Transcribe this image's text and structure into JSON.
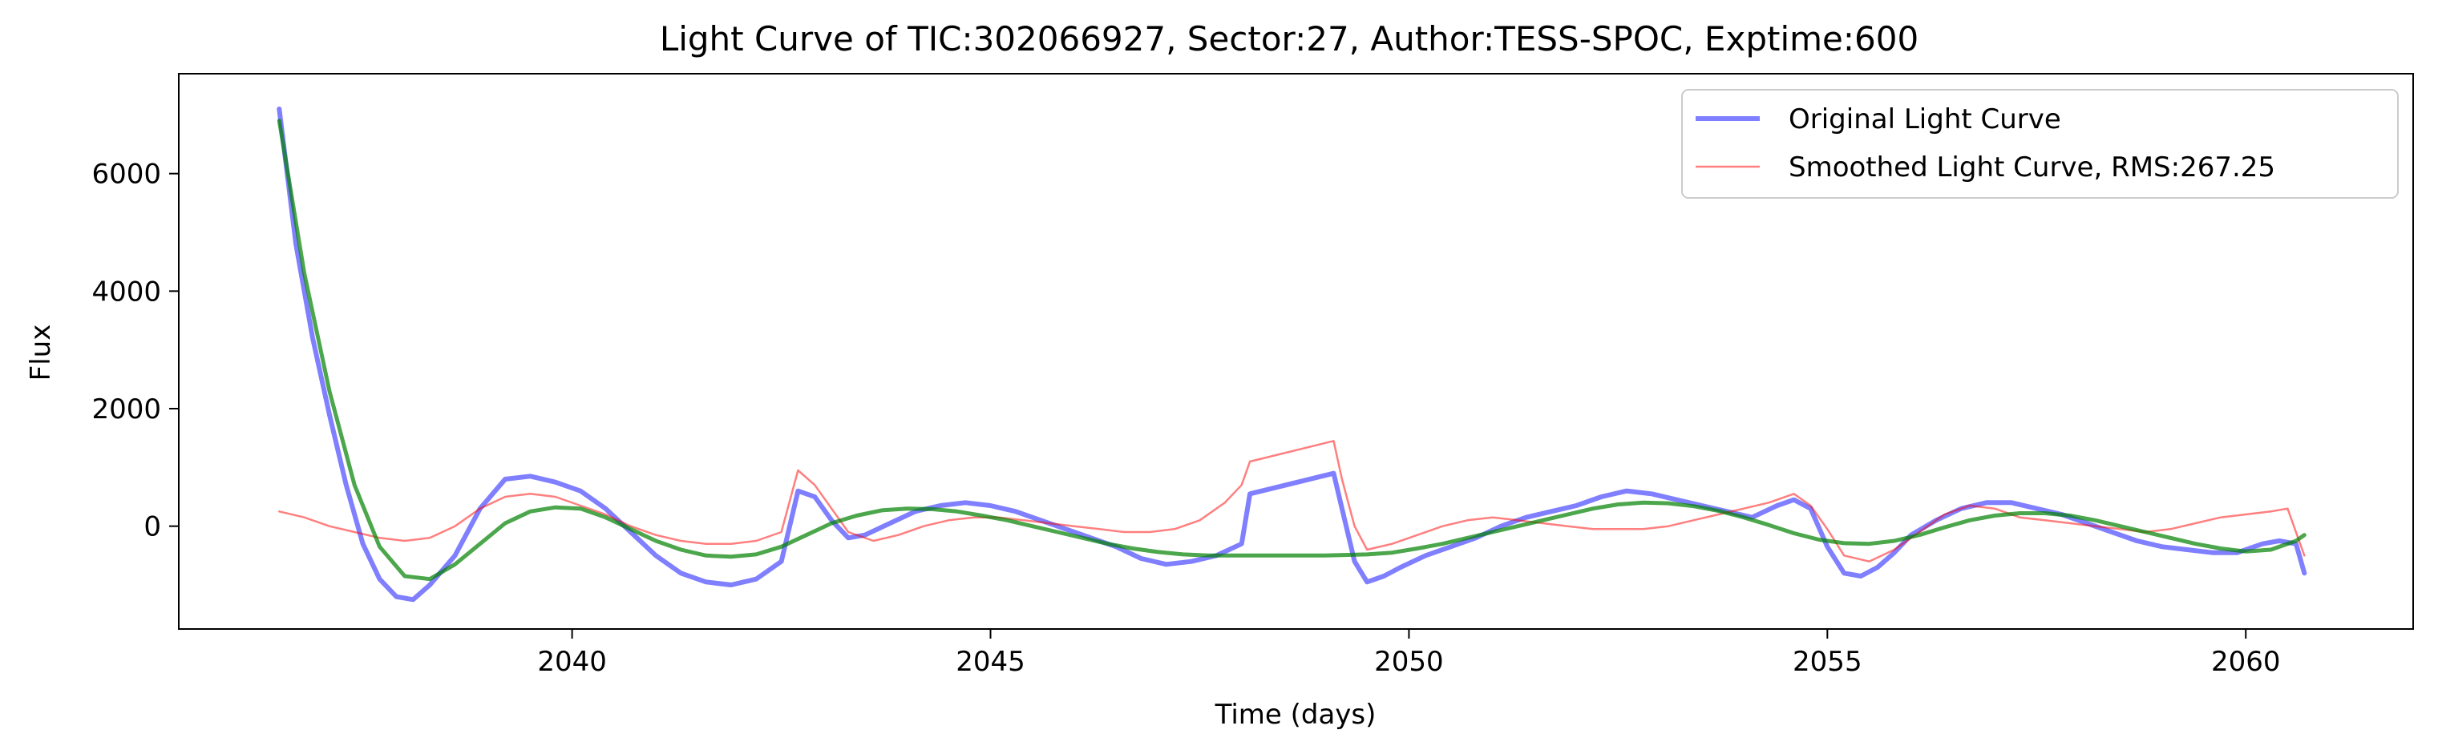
{
  "chart_data": {
    "type": "line",
    "title": "Light Curve of TIC:302066927, Sector:27, Author:TESS-SPOC, Exptime:600",
    "xlabel": "Time (days)",
    "ylabel": "Flux",
    "xlim": [
      2035.3,
      2062.0
    ],
    "ylim": [
      -1750,
      7700
    ],
    "xticks": [
      2040,
      2045,
      2050,
      2055,
      2060
    ],
    "yticks": [
      0,
      2000,
      4000,
      6000
    ],
    "xtick_labels": [
      "2040",
      "2045",
      "2050",
      "2055",
      "2060"
    ],
    "ytick_labels": [
      "0",
      "2000",
      "4000",
      "6000"
    ],
    "grid": false,
    "legend_position": "top-right",
    "series": [
      {
        "name": "Original Light Curve",
        "color": "#0000ff",
        "x": [
          2036.5,
          2036.7,
          2036.9,
          2037.1,
          2037.3,
          2037.5,
          2037.7,
          2037.9,
          2038.1,
          2038.3,
          2038.6,
          2038.9,
          2039.2,
          2039.5,
          2039.8,
          2040.1,
          2040.4,
          2040.7,
          2041.0,
          2041.3,
          2041.6,
          2041.9,
          2042.2,
          2042.5,
          2042.7,
          2042.9,
          2043.1,
          2043.3,
          2043.5,
          2043.8,
          2044.1,
          2044.4,
          2044.7,
          2045.0,
          2045.3,
          2045.6,
          2045.9,
          2046.2,
          2046.5,
          2046.8,
          2047.1,
          2047.4,
          2047.7,
          2048.0,
          2048.1,
          2049.1,
          2049.2,
          2049.35,
          2049.5,
          2049.7,
          2049.9,
          2050.2,
          2050.5,
          2050.8,
          2051.1,
          2051.4,
          2051.7,
          2052.0,
          2052.3,
          2052.6,
          2052.9,
          2053.2,
          2053.5,
          2053.8,
          2054.1,
          2054.4,
          2054.6,
          2054.8,
          2055.0,
          2055.2,
          2055.4,
          2055.6,
          2055.8,
          2056.0,
          2056.3,
          2056.6,
          2056.9,
          2057.2,
          2057.5,
          2057.8,
          2058.1,
          2058.4,
          2058.7,
          2059.0,
          2059.3,
          2059.6,
          2059.9,
          2060.2,
          2060.4,
          2060.6,
          2060.7
        ],
        "values": [
          7100,
          4800,
          3200,
          1900,
          700,
          -300,
          -900,
          -1200,
          -1250,
          -1000,
          -500,
          300,
          800,
          850,
          750,
          600,
          300,
          -100,
          -500,
          -800,
          -950,
          -1000,
          -900,
          -600,
          600,
          500,
          100,
          -200,
          -150,
          50,
          250,
          350,
          400,
          350,
          250,
          100,
          -50,
          -200,
          -350,
          -550,
          -650,
          -600,
          -500,
          -300,
          550,
          900,
          300,
          -600,
          -950,
          -850,
          -700,
          -500,
          -350,
          -200,
          0,
          150,
          250,
          350,
          500,
          600,
          550,
          450,
          350,
          250,
          150,
          350,
          450,
          300,
          -350,
          -800,
          -850,
          -700,
          -450,
          -150,
          100,
          300,
          400,
          400,
          300,
          200,
          50,
          -100,
          -250,
          -350,
          -400,
          -450,
          -450,
          -300,
          -250,
          -300,
          -800
        ]
      },
      {
        "name": "Smoothed Light Curve, RMS:267.25",
        "color": "#ff0000",
        "x": [
          2036.5,
          2036.8,
          2037.1,
          2037.4,
          2037.7,
          2038.0,
          2038.3,
          2038.6,
          2038.9,
          2039.2,
          2039.5,
          2039.8,
          2040.1,
          2040.4,
          2040.7,
          2041.0,
          2041.3,
          2041.6,
          2041.9,
          2042.2,
          2042.5,
          2042.7,
          2042.9,
          2043.1,
          2043.3,
          2043.6,
          2043.9,
          2044.2,
          2044.5,
          2044.8,
          2045.1,
          2045.4,
          2045.7,
          2046.0,
          2046.3,
          2046.6,
          2046.9,
          2047.2,
          2047.5,
          2047.8,
          2048.0,
          2048.1,
          2049.1,
          2049.2,
          2049.35,
          2049.5,
          2049.8,
          2050.1,
          2050.4,
          2050.7,
          2051.0,
          2051.3,
          2051.6,
          2051.9,
          2052.2,
          2052.5,
          2052.8,
          2053.1,
          2053.4,
          2053.7,
          2054.0,
          2054.3,
          2054.6,
          2054.8,
          2055.0,
          2055.2,
          2055.5,
          2055.8,
          2056.1,
          2056.4,
          2056.7,
          2057.0,
          2057.3,
          2057.6,
          2057.9,
          2058.2,
          2058.5,
          2058.8,
          2059.1,
          2059.4,
          2059.7,
          2060.0,
          2060.3,
          2060.5,
          2060.7
        ],
        "values": [
          250,
          150,
          0,
          -100,
          -200,
          -250,
          -200,
          0,
          300,
          500,
          550,
          500,
          350,
          200,
          0,
          -150,
          -250,
          -300,
          -300,
          -250,
          -100,
          950,
          700,
          300,
          -100,
          -250,
          -150,
          0,
          100,
          150,
          150,
          100,
          50,
          0,
          -50,
          -100,
          -100,
          -50,
          100,
          400,
          700,
          1100,
          1450,
          800,
          0,
          -400,
          -300,
          -150,
          0,
          100,
          150,
          100,
          50,
          0,
          -50,
          -50,
          -50,
          0,
          100,
          200,
          300,
          400,
          550,
          350,
          -50,
          -500,
          -600,
          -400,
          -100,
          200,
          350,
          300,
          150,
          100,
          50,
          0,
          -50,
          -100,
          -50,
          50,
          150,
          200,
          250,
          300,
          -500
        ]
      },
      {
        "name": "",
        "color": "#008000",
        "x": [
          2036.5,
          2036.8,
          2037.1,
          2037.4,
          2037.7,
          2038.0,
          2038.3,
          2038.6,
          2038.9,
          2039.2,
          2039.5,
          2039.8,
          2040.1,
          2040.4,
          2040.7,
          2041.0,
          2041.3,
          2041.6,
          2041.9,
          2042.2,
          2042.5,
          2042.8,
          2043.1,
          2043.4,
          2043.7,
          2044.0,
          2044.3,
          2044.6,
          2044.9,
          2045.2,
          2045.5,
          2045.8,
          2046.1,
          2046.4,
          2046.7,
          2047.0,
          2047.3,
          2047.6,
          2047.9,
          2048.5,
          2049.0,
          2049.5,
          2049.8,
          2050.1,
          2050.4,
          2050.7,
          2051.0,
          2051.3,
          2051.6,
          2051.9,
          2052.2,
          2052.5,
          2052.8,
          2053.1,
          2053.4,
          2053.7,
          2054.0,
          2054.3,
          2054.6,
          2054.9,
          2055.2,
          2055.5,
          2055.8,
          2056.1,
          2056.4,
          2056.7,
          2057.0,
          2057.3,
          2057.6,
          2057.9,
          2058.2,
          2058.5,
          2058.8,
          2059.1,
          2059.4,
          2059.7,
          2060.0,
          2060.3,
          2060.6,
          2060.7
        ],
        "values": [
          6900,
          4300,
          2300,
          700,
          -350,
          -850,
          -900,
          -650,
          -300,
          50,
          250,
          320,
          300,
          150,
          -50,
          -250,
          -400,
          -500,
          -520,
          -480,
          -350,
          -150,
          50,
          180,
          270,
          300,
          290,
          250,
          180,
          100,
          0,
          -100,
          -200,
          -300,
          -380,
          -440,
          -480,
          -500,
          -500,
          -500,
          -500,
          -480,
          -450,
          -380,
          -300,
          -200,
          -100,
          0,
          100,
          200,
          300,
          370,
          400,
          390,
          340,
          260,
          150,
          20,
          -120,
          -230,
          -290,
          -300,
          -250,
          -150,
          -20,
          100,
          180,
          220,
          220,
          180,
          100,
          0,
          -100,
          -200,
          -300,
          -380,
          -430,
          -400,
          -250,
          -150
        ]
      }
    ]
  }
}
